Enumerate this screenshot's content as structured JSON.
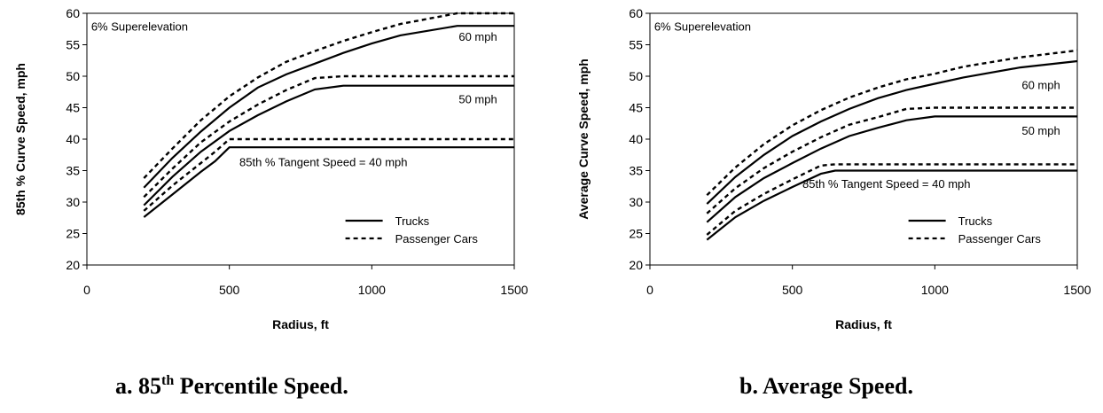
{
  "captions": [
    {
      "prefix": "a.  85",
      "sup": "th",
      "suffix": " Percentile Speed."
    },
    {
      "prefix": "b.  Average Speed.",
      "sup": "",
      "suffix": ""
    }
  ],
  "chart_data": [
    {
      "type": "line",
      "title": "",
      "xlabel": "Radius, ft",
      "ylabel": "85th % Curve Speed, mph",
      "xlim": [
        0,
        1500
      ],
      "ylim": [
        20,
        60
      ],
      "xticks": [
        0,
        500,
        1000,
        1500
      ],
      "yticks": [
        20,
        25,
        30,
        35,
        40,
        45,
        50,
        55,
        60
      ],
      "grid": false,
      "legend_position": "bottom-right",
      "legend": [
        {
          "label": "Trucks",
          "style": "solid"
        },
        {
          "label": "Passenger Cars",
          "style": "dotted"
        }
      ],
      "annotations": [
        {
          "text": "6% Superelevation",
          "x": 15,
          "y": 57.8
        },
        {
          "text": "60 mph",
          "x": 1440,
          "y": 56.2
        },
        {
          "text": "50 mph",
          "x": 1440,
          "y": 46.3
        },
        {
          "text": "85th % Tangent Speed = 40 mph",
          "x": 1125,
          "y": 36.3
        }
      ],
      "series": [
        {
          "style": "solid",
          "points": [
            [
              200,
              32.3
            ],
            [
              300,
              37
            ],
            [
              400,
              41.2
            ],
            [
              500,
              45
            ],
            [
              600,
              48.2
            ],
            [
              700,
              50.3
            ],
            [
              800,
              52
            ],
            [
              900,
              53.7
            ],
            [
              1000,
              55.2
            ],
            [
              1100,
              56.5
            ],
            [
              1300,
              58
            ],
            [
              1500,
              58
            ]
          ]
        },
        {
          "style": "dotted",
          "points": [
            [
              200,
              33.8
            ],
            [
              300,
              38.5
            ],
            [
              400,
              43
            ],
            [
              500,
              46.8
            ],
            [
              600,
              49.8
            ],
            [
              700,
              52.3
            ],
            [
              800,
              54
            ],
            [
              900,
              55.6
            ],
            [
              1000,
              57
            ],
            [
              1100,
              58.3
            ],
            [
              1300,
              60
            ],
            [
              1500,
              60
            ]
          ]
        },
        {
          "style": "solid",
          "points": [
            [
              200,
              29.5
            ],
            [
              300,
              34
            ],
            [
              400,
              38
            ],
            [
              500,
              41.3
            ],
            [
              600,
              43.8
            ],
            [
              700,
              46
            ],
            [
              800,
              47.9
            ],
            [
              900,
              48.5
            ],
            [
              1500,
              48.5
            ]
          ]
        },
        {
          "style": "dotted",
          "points": [
            [
              200,
              30.8
            ],
            [
              300,
              35.3
            ],
            [
              400,
              39.5
            ],
            [
              500,
              42.8
            ],
            [
              600,
              45.5
            ],
            [
              700,
              47.8
            ],
            [
              800,
              49.7
            ],
            [
              900,
              50
            ],
            [
              1500,
              50
            ]
          ]
        },
        {
          "style": "solid",
          "points": [
            [
              200,
              27.6
            ],
            [
              300,
              31.2
            ],
            [
              400,
              34.8
            ],
            [
              450,
              36.5
            ],
            [
              500,
              38.7
            ],
            [
              550,
              38.7
            ],
            [
              1500,
              38.7
            ]
          ]
        },
        {
          "style": "dotted",
          "points": [
            [
              200,
              28.6
            ],
            [
              300,
              32.6
            ],
            [
              400,
              36.2
            ],
            [
              450,
              38
            ],
            [
              500,
              40
            ],
            [
              1500,
              40
            ]
          ]
        }
      ]
    },
    {
      "type": "line",
      "title": "",
      "xlabel": "Radius, ft",
      "ylabel": "Average Curve Speed, mph",
      "xlim": [
        0,
        1500
      ],
      "ylim": [
        20,
        60
      ],
      "xticks": [
        0,
        500,
        1000,
        1500
      ],
      "yticks": [
        20,
        25,
        30,
        35,
        40,
        45,
        50,
        55,
        60
      ],
      "grid": false,
      "legend_position": "bottom-right",
      "legend": [
        {
          "label": "Trucks",
          "style": "solid"
        },
        {
          "label": "Passenger Cars",
          "style": "dotted"
        }
      ],
      "annotations": [
        {
          "text": "6% Superelevation",
          "x": 15,
          "y": 57.8
        },
        {
          "text": "60 mph",
          "x": 1440,
          "y": 48.5
        },
        {
          "text": "50 mph",
          "x": 1440,
          "y": 41.3
        },
        {
          "text": "85th %  Tangent Speed = 40 mph",
          "x": 1125,
          "y": 32.8
        }
      ],
      "series": [
        {
          "style": "solid",
          "points": [
            [
              200,
              29.7
            ],
            [
              300,
              34
            ],
            [
              400,
              37.5
            ],
            [
              500,
              40.5
            ],
            [
              600,
              42.8
            ],
            [
              700,
              44.8
            ],
            [
              800,
              46.5
            ],
            [
              900,
              47.8
            ],
            [
              1000,
              48.8
            ],
            [
              1100,
              49.8
            ],
            [
              1300,
              51.4
            ],
            [
              1500,
              52.4
            ]
          ]
        },
        {
          "style": "dotted",
          "points": [
            [
              200,
              31.1
            ],
            [
              300,
              35.5
            ],
            [
              400,
              39.2
            ],
            [
              500,
              42.2
            ],
            [
              600,
              44.6
            ],
            [
              700,
              46.6
            ],
            [
              800,
              48.2
            ],
            [
              900,
              49.5
            ],
            [
              1000,
              50.4
            ],
            [
              1100,
              51.5
            ],
            [
              1300,
              53
            ],
            [
              1500,
              54.1
            ]
          ]
        },
        {
          "style": "solid",
          "points": [
            [
              200,
              26.8
            ],
            [
              300,
              30.8
            ],
            [
              400,
              33.8
            ],
            [
              500,
              36.2
            ],
            [
              600,
              38.5
            ],
            [
              700,
              40.5
            ],
            [
              800,
              41.8
            ],
            [
              900,
              43
            ],
            [
              1000,
              43.6
            ],
            [
              1500,
              43.6
            ]
          ]
        },
        {
          "style": "dotted",
          "points": [
            [
              200,
              28.2
            ],
            [
              300,
              32.2
            ],
            [
              400,
              35.4
            ],
            [
              500,
              38
            ],
            [
              600,
              40.3
            ],
            [
              700,
              42.3
            ],
            [
              800,
              43.5
            ],
            [
              900,
              44.8
            ],
            [
              1000,
              45
            ],
            [
              1500,
              45
            ]
          ]
        },
        {
          "style": "solid",
          "points": [
            [
              200,
              24
            ],
            [
              300,
              27.6
            ],
            [
              400,
              30.2
            ],
            [
              500,
              32.4
            ],
            [
              600,
              34.5
            ],
            [
              650,
              35
            ],
            [
              1500,
              35
            ]
          ]
        },
        {
          "style": "dotted",
          "points": [
            [
              200,
              24.8
            ],
            [
              300,
              28.6
            ],
            [
              400,
              31.3
            ],
            [
              500,
              33.6
            ],
            [
              600,
              35.8
            ],
            [
              650,
              36
            ],
            [
              1500,
              36
            ]
          ]
        }
      ]
    }
  ]
}
